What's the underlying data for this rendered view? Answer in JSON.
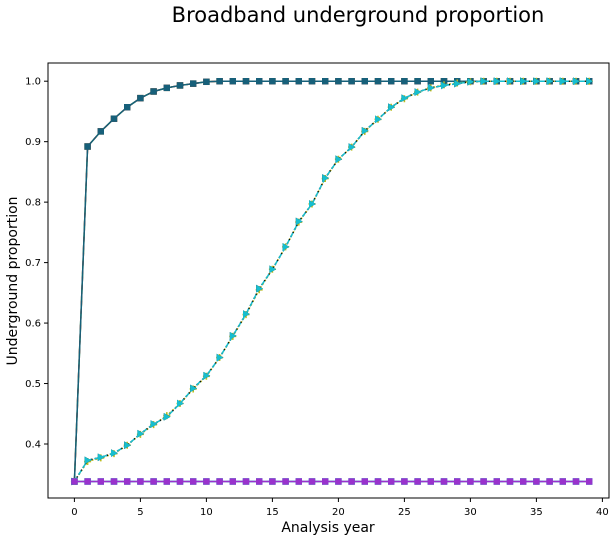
{
  "chart_data": {
    "type": "line",
    "title": "Broadband underground proportion",
    "xlabel": "Analysis year",
    "ylabel": "Underground proportion",
    "xlim": [
      -2,
      40.5
    ],
    "ylim": [
      0.3107,
      1.0301
    ],
    "xticks": [
      "0",
      "5",
      "10",
      "15",
      "20",
      "25",
      "30",
      "35",
      "40"
    ],
    "yticks": [
      "0.4",
      "0.5",
      "0.6",
      "0.7",
      "0.8",
      "0.9",
      "1.0"
    ],
    "grid": false,
    "x": [
      0,
      1,
      2,
      3,
      4,
      5,
      6,
      7,
      8,
      9,
      10,
      11,
      12,
      13,
      14,
      15,
      16,
      17,
      18,
      19,
      20,
      21,
      22,
      23,
      24,
      25,
      26,
      27,
      28,
      29,
      30,
      31,
      32,
      33,
      34,
      35,
      36,
      37,
      38,
      39
    ],
    "series": [
      {
        "color": "#2ca02c",
        "linestyle": "solid",
        "marker": "square",
        "values": [
          0.338,
          0.892,
          0.917,
          0.938,
          0.957,
          0.972,
          0.983,
          0.989,
          0.993,
          0.996,
          0.999,
          1.0,
          1.0,
          1.0,
          1.0,
          1.0,
          1.0,
          1.0,
          1.0,
          1.0,
          1.0,
          1.0,
          1.0,
          1.0,
          1.0,
          1.0,
          1.0,
          1.0,
          1.0,
          1.0,
          1.0,
          1.0,
          1.0,
          1.0,
          1.0,
          1.0,
          1.0,
          1.0,
          1.0,
          1.0
        ]
      },
      {
        "color": "#d62728",
        "linestyle": "dashed",
        "marker": "square",
        "values": [
          0.338,
          0.892,
          0.917,
          0.938,
          0.957,
          0.972,
          0.983,
          0.989,
          0.993,
          0.996,
          0.999,
          1.0,
          1.0,
          1.0,
          1.0,
          1.0,
          1.0,
          1.0,
          1.0,
          1.0,
          1.0,
          1.0,
          1.0,
          1.0,
          1.0,
          1.0,
          1.0,
          1.0,
          1.0,
          1.0,
          1.0,
          1.0,
          1.0,
          1.0,
          1.0,
          1.0,
          1.0,
          1.0,
          1.0,
          1.0
        ]
      },
      {
        "color": "#17607a",
        "linestyle": "solid",
        "marker": "square",
        "values": [
          0.338,
          0.892,
          0.917,
          0.938,
          0.957,
          0.972,
          0.983,
          0.989,
          0.993,
          0.996,
          0.999,
          1.0,
          1.0,
          1.0,
          1.0,
          1.0,
          1.0,
          1.0,
          1.0,
          1.0,
          1.0,
          1.0,
          1.0,
          1.0,
          1.0,
          1.0,
          1.0,
          1.0,
          1.0,
          1.0,
          1.0,
          1.0,
          1.0,
          1.0,
          1.0,
          1.0,
          1.0,
          1.0,
          1.0,
          1.0
        ]
      },
      {
        "color": "#bcbd22",
        "linestyle": "dotted",
        "marker": "plus",
        "values": [
          0.338,
          0.371,
          0.377,
          0.384,
          0.398,
          0.416,
          0.432,
          0.447,
          0.467,
          0.491,
          0.512,
          0.543,
          0.578,
          0.614,
          0.655,
          0.689,
          0.726,
          0.767,
          0.797,
          0.839,
          0.871,
          0.891,
          0.917,
          0.937,
          0.957,
          0.971,
          0.982,
          0.989,
          0.994,
          0.997,
          0.999,
          1.0,
          1.0,
          1.0,
          1.0,
          1.0,
          1.0,
          1.0,
          1.0,
          1.0
        ]
      },
      {
        "color": "#000000",
        "linestyle": "dotted",
        "marker": "triangle-right",
        "values": [
          0.338,
          0.373,
          0.378,
          0.385,
          0.398,
          0.417,
          0.433,
          0.445,
          0.467,
          0.492,
          0.513,
          0.543,
          0.579,
          0.615,
          0.657,
          0.689,
          0.726,
          0.768,
          0.797,
          0.84,
          0.871,
          0.891,
          0.918,
          0.937,
          0.957,
          0.972,
          0.982,
          0.989,
          0.993,
          0.996,
          0.999,
          1.0,
          1.0,
          1.0,
          1.0,
          1.0,
          1.0,
          1.0,
          1.0,
          1.0
        ]
      },
      {
        "color": "#17becf",
        "linestyle": "dashed",
        "marker": "triangle-right",
        "values": [
          0.338,
          0.373,
          0.378,
          0.385,
          0.398,
          0.417,
          0.433,
          0.445,
          0.467,
          0.492,
          0.513,
          0.543,
          0.579,
          0.615,
          0.657,
          0.689,
          0.726,
          0.768,
          0.797,
          0.84,
          0.871,
          0.891,
          0.918,
          0.937,
          0.957,
          0.972,
          0.982,
          0.989,
          0.993,
          0.996,
          0.999,
          1.0,
          1.0,
          1.0,
          1.0,
          1.0,
          1.0,
          1.0,
          1.0,
          1.0
        ]
      },
      {
        "color": "#1f77b4",
        "linestyle": "solid",
        "marker": "square",
        "values": [
          0.338,
          0.338,
          0.338,
          0.338,
          0.338,
          0.338,
          0.338,
          0.338,
          0.338,
          0.338,
          0.338,
          0.338,
          0.338,
          0.338,
          0.338,
          0.338,
          0.338,
          0.338,
          0.338,
          0.338,
          0.338,
          0.338,
          0.338,
          0.338,
          0.338,
          0.338,
          0.338,
          0.338,
          0.338,
          0.338,
          0.338,
          0.338,
          0.338,
          0.338,
          0.338,
          0.338,
          0.338,
          0.338,
          0.338,
          0.338
        ]
      },
      {
        "color": "#17becf",
        "linestyle": "dashed",
        "marker": "square",
        "values": [
          0.338,
          0.338,
          0.338,
          0.338,
          0.338,
          0.338,
          0.338,
          0.338,
          0.338,
          0.338,
          0.338,
          0.338,
          0.338,
          0.338,
          0.338,
          0.338,
          0.338,
          0.338,
          0.338,
          0.338,
          0.338,
          0.338,
          0.338,
          0.338,
          0.338,
          0.338,
          0.338,
          0.338,
          0.338,
          0.338,
          0.338,
          0.338,
          0.338,
          0.338,
          0.338,
          0.338,
          0.338,
          0.338,
          0.338,
          0.338
        ]
      },
      {
        "color": "#9932cc",
        "linestyle": "solid",
        "marker": "square",
        "values": [
          0.338,
          0.338,
          0.338,
          0.338,
          0.338,
          0.338,
          0.338,
          0.338,
          0.338,
          0.338,
          0.338,
          0.338,
          0.338,
          0.338,
          0.338,
          0.338,
          0.338,
          0.338,
          0.338,
          0.338,
          0.338,
          0.338,
          0.338,
          0.338,
          0.338,
          0.338,
          0.338,
          0.338,
          0.338,
          0.338,
          0.338,
          0.338,
          0.338,
          0.338,
          0.338,
          0.338,
          0.338,
          0.338,
          0.338,
          0.338
        ]
      }
    ]
  }
}
